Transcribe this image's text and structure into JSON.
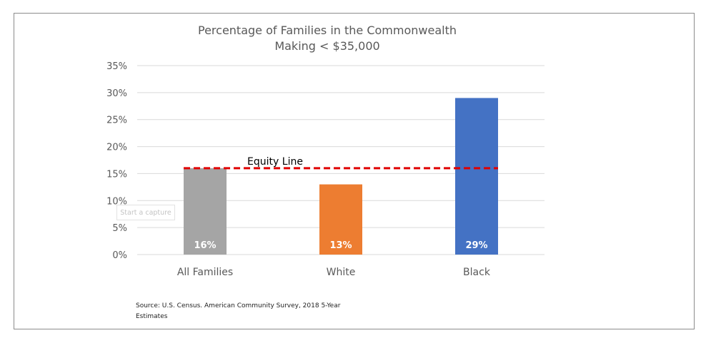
{
  "chart_data": {
    "type": "bar",
    "title": "Percentage of Families in the Commonwealth",
    "subtitle": "Making < $35,000",
    "xlabel": "",
    "ylabel": "",
    "categories": [
      "All Families",
      "White",
      "Black"
    ],
    "values": [
      16,
      13,
      29
    ],
    "data_labels": [
      "16%",
      "13%",
      "29%"
    ],
    "bar_colors": [
      "#a5a5a5",
      "#ed7d31",
      "#4472c4"
    ],
    "ylim": [
      0,
      35
    ],
    "yticks": [
      0,
      5,
      10,
      15,
      20,
      25,
      30,
      35
    ],
    "ytick_labels": [
      "0%",
      "5%",
      "10%",
      "15%",
      "20%",
      "25%",
      "30%",
      "35%"
    ],
    "grid": true,
    "reference_line": {
      "label": "Equity Line",
      "value": 16,
      "color": "#e00000",
      "style": "dashed"
    },
    "source": "Source: U.S. Census. American Community Survey, 2018 5-Year Estimates"
  },
  "overlay": {
    "capture_button_label": "Start a capture"
  }
}
